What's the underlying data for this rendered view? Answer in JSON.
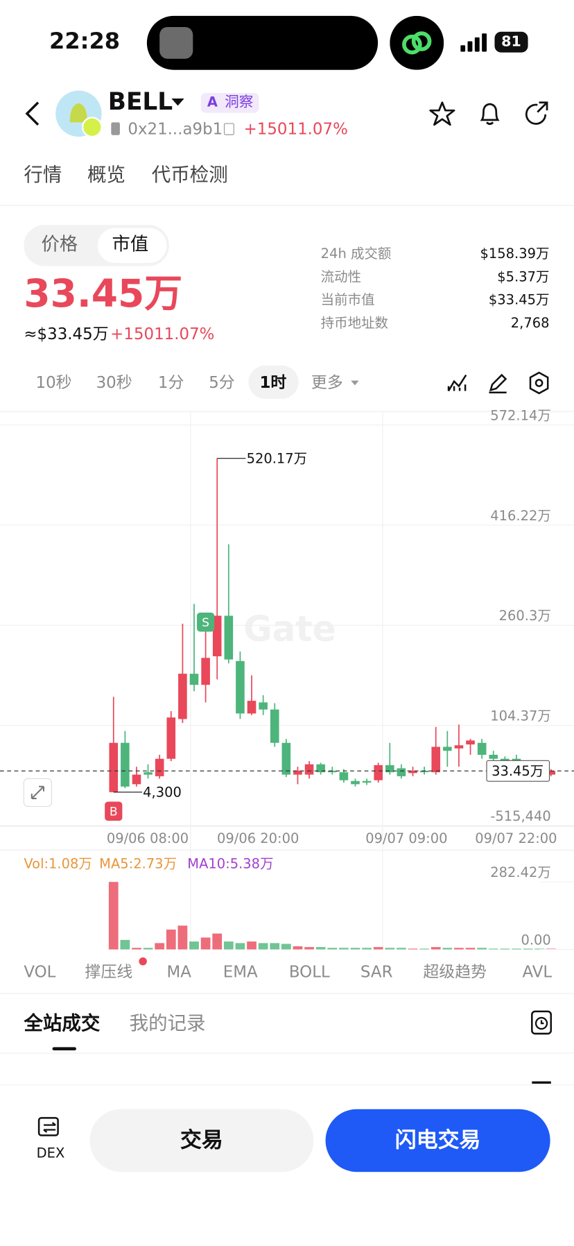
{
  "status_bar": {
    "time": "22:28",
    "battery": "81"
  },
  "header": {
    "symbol": "BELL",
    "ai_label": "洞察",
    "address": "0x21...a9b1",
    "change": "+15011.07%"
  },
  "tabs": [
    "行情",
    "概览",
    "代币检测"
  ],
  "toggle": [
    "价格",
    "市值"
  ],
  "main_value": "33.45万",
  "sub_value": "≈$33.45万",
  "sub_change": "+15011.07%",
  "stats": [
    {
      "label": "24h 成交额",
      "value": "$158.39万"
    },
    {
      "label": "流动性",
      "value": "$5.37万"
    },
    {
      "label": "当前市值",
      "value": "$33.45万"
    },
    {
      "label": "持币地址数",
      "value": "2,768"
    }
  ],
  "intervals": [
    "10秒",
    "30秒",
    "1分",
    "5分",
    "1时",
    "更多"
  ],
  "chart_data": [
    {
      "type": "candlestick",
      "up_color": "#e8485a",
      "down_color": "#4db57b",
      "open": [
        4300,
        772000,
        128000,
        314000,
        252000,
        524000,
        1143000,
        1848000,
        1675000,
        2120000,
        2751000,
        2046000,
        1229000,
        1402000,
        1291000,
        772000,
        277000,
        277000,
        438000,
        339000,
        314000,
        178000,
        178000,
        190000,
        425000,
        376000,
        301000,
        339000,
        314000,
        710000,
        685000,
        747000,
        772000,
        586000,
        524000,
        524000,
        462000,
        400000,
        277000
      ],
      "high": [
        1489000,
        957000,
        400000,
        438000,
        586000,
        1266000,
        2627000,
        2936000,
        2627000,
        5201700,
        3864000,
        2194000,
        1823000,
        1514000,
        1390000,
        833000,
        400000,
        487000,
        462000,
        400000,
        363000,
        215000,
        215000,
        462000,
        772000,
        438000,
        400000,
        400000,
        1019000,
        957000,
        1057000,
        833000,
        833000,
        648000,
        561000,
        586000,
        487000,
        438000,
        363000
      ],
      "low": [
        4300,
        66000,
        91000,
        215000,
        215000,
        487000,
        1081000,
        1576000,
        1402000,
        1761000,
        2009000,
        1143000,
        1205000,
        1205000,
        710000,
        240000,
        128000,
        215000,
        277000,
        277000,
        153000,
        91000,
        116000,
        153000,
        277000,
        215000,
        252000,
        277000,
        277000,
        400000,
        400000,
        586000,
        524000,
        462000,
        438000,
        438000,
        376000,
        339000,
        252000
      ],
      "close": [
        772000,
        91000,
        277000,
        277000,
        524000,
        1167000,
        1848000,
        1675000,
        2095000,
        2751000,
        2070000,
        1229000,
        1427000,
        1291000,
        772000,
        277000,
        339000,
        438000,
        314000,
        314000,
        190000,
        128000,
        153000,
        425000,
        314000,
        252000,
        339000,
        314000,
        710000,
        648000,
        734000,
        809000,
        586000,
        524000,
        499000,
        462000,
        400000,
        363000,
        334500
      ],
      "ylim": [
        -527400,
        5930200
      ],
      "yticks": [
        {
          "value": 5721400,
          "label": "572.14万"
        },
        {
          "value": 4162200,
          "label": "416.22万"
        },
        {
          "value": 2603000,
          "label": "260.3万"
        },
        {
          "value": 1043700,
          "label": "104.37万"
        },
        {
          "value": -515440,
          "label": "-515,440"
        }
      ],
      "xticks": [
        "09/06 08:00",
        "09/06 20:00",
        "09/07 09:00",
        "09/07 22:00"
      ],
      "annotations": {
        "high_label": "520.17万",
        "low_label": "4,300",
        "last_price_label": "33.45万",
        "buy_marker": "B",
        "sell_marker": "S",
        "watermark": "Gate"
      },
      "grid": true
    },
    {
      "type": "bar",
      "values": [
        2824200,
        399000,
        66000,
        66000,
        266000,
        831000,
        997000,
        332000,
        498000,
        665000,
        332000,
        266000,
        332000,
        266000,
        266000,
        233000,
        133000,
        100000,
        100000,
        66000,
        66000,
        66000,
        66000,
        100000,
        66000,
        66000,
        33000,
        33000,
        100000,
        66000,
        66000,
        66000,
        66000,
        33000,
        33000,
        33000,
        33000,
        33000,
        33000
      ],
      "ylim": [
        0,
        4153000
      ],
      "yticks": [
        {
          "value": 2824200,
          "label": "282.42万"
        },
        {
          "value": 0,
          "label": "0.00"
        }
      ],
      "legend": [
        {
          "name": "Vol:1.08万",
          "color": "#e8963a"
        },
        {
          "name": "MA5:2.73万",
          "color": "#e8963a"
        },
        {
          "name": "MA10:5.38万",
          "color": "#a23fd1"
        }
      ]
    }
  ],
  "indicators": [
    "VOL",
    "撑压线",
    "MA",
    "EMA",
    "BOLL",
    "SAR",
    "超级趋势",
    "AVL"
  ],
  "trade_tabs": [
    "全站成交",
    "我的记录"
  ],
  "bottom_bar": {
    "dex": "DEX",
    "trade": "交易",
    "flash": "闪电交易"
  }
}
